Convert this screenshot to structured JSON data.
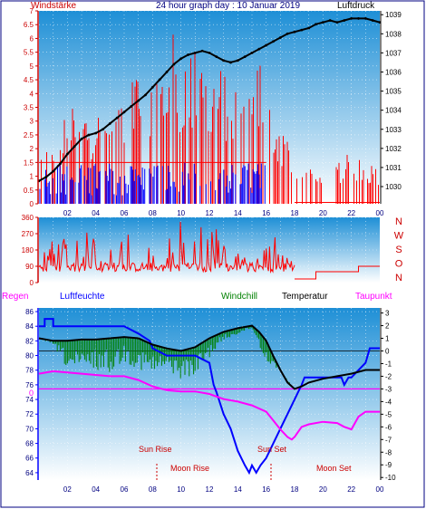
{
  "header": {
    "left_label": "Windstärke",
    "title": "24 hour graph day : 10 Januar 2019",
    "right_label": "Luftdruck"
  },
  "bottom_header": {
    "regen": "Regen",
    "luftfeuchte": "Luftfeuchte",
    "windchill": "Windchill",
    "temperatur": "Temperatur",
    "taupunkt": "Taupunkt"
  },
  "direction_labels": [
    "N",
    "W",
    "S",
    "O",
    "N"
  ],
  "annotations": {
    "sun_rise": "Sun Rise",
    "moon_rise": "Moon Rise",
    "sun_set": "Sun Set",
    "moon_set": "Moon Set"
  },
  "colors": {
    "plot_top": "#1e8fd6",
    "plot_bottom": "#ffffff",
    "wind_red": "#ff0000",
    "wind_blue": "#0000ff",
    "pressure": "#000000",
    "humidity": "#0000ff",
    "windchill": "#008000",
    "temperature": "#000000",
    "dewpoint": "#ff00ff",
    "axis_red": "#cc0000",
    "axis_blue": "#000080"
  },
  "chart_data": [
    {
      "type": "line",
      "name": "wind-pressure",
      "x_ticks": [
        "02",
        "04",
        "06",
        "08",
        "10",
        "12",
        "14",
        "16",
        "18",
        "20",
        "22",
        "00"
      ],
      "left_axis_ticks": [
        "7",
        "6.5",
        "6",
        "5.5",
        "5",
        "4.5",
        "4",
        "3.5",
        "3",
        "2.5",
        "2",
        "1.5",
        "1",
        "0.5",
        "0"
      ],
      "right_axis_ticks": [
        "1039",
        "1038",
        "1037",
        "1036",
        "1035",
        "1034",
        "1033",
        "1032",
        "1031",
        "1030"
      ],
      "ylim_left": [
        0,
        7
      ],
      "ylim_right": [
        1029.1,
        1039.2
      ],
      "pressure": {
        "x": [
          0,
          0.5,
          1,
          1.5,
          2,
          2.5,
          3,
          3.5,
          4,
          4.5,
          5,
          5.5,
          6,
          6.5,
          7,
          7.5,
          8,
          8.5,
          9,
          9.5,
          10,
          10.5,
          11,
          11.5,
          12,
          12.5,
          13,
          13.5,
          14,
          14.5,
          15,
          15.5,
          16,
          16.5,
          17,
          17.5,
          18,
          18.5,
          19,
          19.5,
          20,
          20.5,
          21,
          21.5,
          22,
          22.5,
          23,
          23.5,
          24
        ],
        "y": [
          1030.3,
          1030.5,
          1030.8,
          1031.2,
          1031.7,
          1032.1,
          1032.5,
          1032.7,
          1032.8,
          1033.0,
          1033.3,
          1033.6,
          1033.9,
          1034.2,
          1034.5,
          1034.8,
          1035.2,
          1035.6,
          1036.0,
          1036.4,
          1036.7,
          1036.9,
          1037.0,
          1037.1,
          1037.0,
          1036.8,
          1036.6,
          1036.5,
          1036.6,
          1036.8,
          1037.0,
          1037.2,
          1037.4,
          1037.6,
          1037.8,
          1038.0,
          1038.1,
          1038.2,
          1038.3,
          1038.5,
          1038.6,
          1038.7,
          1038.6,
          1038.7,
          1038.8,
          1038.8,
          1038.8,
          1038.7,
          1038.6
        ]
      },
      "wind_red_envelope": {
        "x": [
          0,
          0.5,
          1,
          2,
          3,
          4,
          5,
          6,
          7,
          8,
          9,
          9.5,
          10,
          11,
          12,
          13,
          14,
          15,
          15.5,
          16,
          17,
          18,
          19,
          20,
          21,
          22,
          23,
          24
        ],
        "y": [
          2,
          2,
          2,
          3.5,
          3.5,
          3.5,
          3.5,
          4,
          5,
          5.5,
          5,
          7,
          5.5,
          5.5,
          5,
          5,
          4,
          4,
          5.5,
          4,
          3,
          2,
          1.5,
          1.5,
          1.5,
          2,
          1.5,
          1.5
        ]
      },
      "wind_blue_envelope": {
        "x": [
          0,
          1,
          2,
          3,
          4,
          5,
          6,
          7,
          8,
          9,
          10,
          11,
          12,
          13,
          14,
          15,
          16,
          17
        ],
        "y": [
          1.5,
          1.5,
          1.5,
          1.5,
          1.5,
          1.5,
          1.5,
          1.5,
          1.5,
          1.5,
          1.5,
          1.5,
          1.5,
          1.5,
          1.5,
          1.5,
          1.5,
          0
        ]
      }
    },
    {
      "type": "line",
      "name": "wind-direction",
      "y_ticks": [
        "360",
        "270",
        "180",
        "90",
        "0"
      ],
      "ylim": [
        0,
        360
      ],
      "envelope": {
        "x": [
          0,
          1,
          2,
          3,
          4,
          5,
          6,
          7,
          8,
          9,
          10,
          11,
          12,
          13,
          14,
          15,
          16,
          17,
          18,
          19,
          20,
          21,
          22,
          23,
          24
        ],
        "y": [
          90,
          350,
          300,
          280,
          330,
          250,
          280,
          300,
          200,
          350,
          350,
          350,
          350,
          250,
          220,
          310,
          270,
          260,
          90,
          60,
          80,
          60,
          90,
          90,
          90
        ]
      },
      "tail": {
        "x": [
          18,
          19,
          19.5,
          20,
          21,
          22,
          22.5,
          23,
          24
        ],
        "y": [
          20,
          20,
          60,
          60,
          60,
          60,
          90,
          90,
          90
        ]
      }
    },
    {
      "type": "line",
      "name": "humidity-temperature",
      "left_axis_ticks": [
        "86",
        "84",
        "82",
        "80",
        "78",
        "76",
        "74",
        "72",
        "70",
        "68",
        "66",
        "64"
      ],
      "right_axis_ticks": [
        "3",
        "2",
        "1",
        "0",
        "-1",
        "-2",
        "-3",
        "-4",
        "-5",
        "-6",
        "-7",
        "-8",
        "-9",
        "-10"
      ],
      "ylim_left": [
        63,
        86.5
      ],
      "ylim_right": [
        -10.2,
        3.4
      ],
      "regen_zero_label": "0",
      "humidity": {
        "x": [
          0,
          0.4,
          0.4,
          1,
          1,
          2,
          3,
          4,
          5,
          6,
          7,
          7.8,
          8,
          9,
          10,
          11,
          12,
          12.3,
          12.5,
          13,
          13.5,
          14,
          14.5,
          14.8,
          15,
          15.3,
          15.6,
          16,
          16.5,
          17,
          17.5,
          18,
          18.5,
          18.7,
          19,
          20,
          21,
          21.3,
          21.5,
          21.8,
          22,
          22.5,
          23,
          23.3,
          24
        ],
        "y": [
          84,
          84,
          85,
          85,
          84,
          84,
          84,
          84,
          84,
          84,
          83,
          82,
          81,
          80,
          80,
          80,
          79,
          76,
          75,
          72,
          70,
          67,
          65,
          64,
          65,
          64,
          65,
          66,
          68,
          70,
          72,
          74,
          76,
          77,
          77,
          77,
          77,
          77,
          76,
          77,
          77,
          78,
          79,
          81,
          81
        ]
      },
      "temperature": {
        "x": [
          0,
          1,
          2,
          3,
          4,
          5,
          6,
          7,
          8,
          9,
          10,
          11,
          12,
          13,
          14,
          15,
          15.5,
          16,
          16.5,
          17,
          17.5,
          18,
          18.5,
          19,
          20,
          21,
          22,
          23,
          24
        ],
        "y": [
          1,
          0.8,
          0.8,
          0.9,
          0.9,
          1,
          1.1,
          1,
          0.5,
          0.2,
          0,
          0.3,
          1,
          1.5,
          1.8,
          2,
          1.5,
          0.8,
          -0.4,
          -1.5,
          -2.5,
          -3.0,
          -2.8,
          -2.5,
          -2.2,
          -2.0,
          -1.8,
          -1.5,
          -1.5
        ]
      },
      "windchill": {
        "x": [
          0,
          1,
          2,
          3,
          4,
          5,
          6,
          7,
          8,
          9,
          10,
          11,
          12,
          13,
          14,
          15,
          16,
          17,
          18,
          19,
          20,
          21,
          22,
          23,
          24
        ],
        "y": [
          1,
          0.5,
          -1.5,
          -2,
          -1.5,
          -1.8,
          -0.8,
          -1.5,
          -2,
          -1.5,
          -2.2,
          -2,
          -0.5,
          0.8,
          1.3,
          1.8,
          -1,
          -1.5,
          -3,
          -2.5,
          -2.2,
          -2,
          -1.8,
          -1.5,
          -1.5
        ]
      },
      "dewpoint": {
        "x": [
          0,
          1,
          2,
          3,
          4,
          5,
          6,
          7,
          8,
          9,
          10,
          11,
          12,
          13,
          14,
          15,
          16,
          16.5,
          17,
          17.5,
          17.8,
          18,
          18.5,
          19,
          20,
          21,
          21.5,
          22,
          22.5,
          23,
          24
        ],
        "y": [
          -1.8,
          -1.6,
          -1.7,
          -1.8,
          -1.9,
          -2.0,
          -2.0,
          -2.3,
          -2.8,
          -3.1,
          -3.2,
          -3.2,
          -3.4,
          -3.8,
          -4.0,
          -4.3,
          -4.8,
          -5.5,
          -6.2,
          -6.8,
          -7.0,
          -6.8,
          -6,
          -5.8,
          -5.6,
          -5.7,
          -6,
          -6.2,
          -5.2,
          -4.8,
          -4.8
        ]
      },
      "regen": {
        "x": [
          0,
          24
        ],
        "y": [
          0,
          0
        ]
      }
    }
  ]
}
